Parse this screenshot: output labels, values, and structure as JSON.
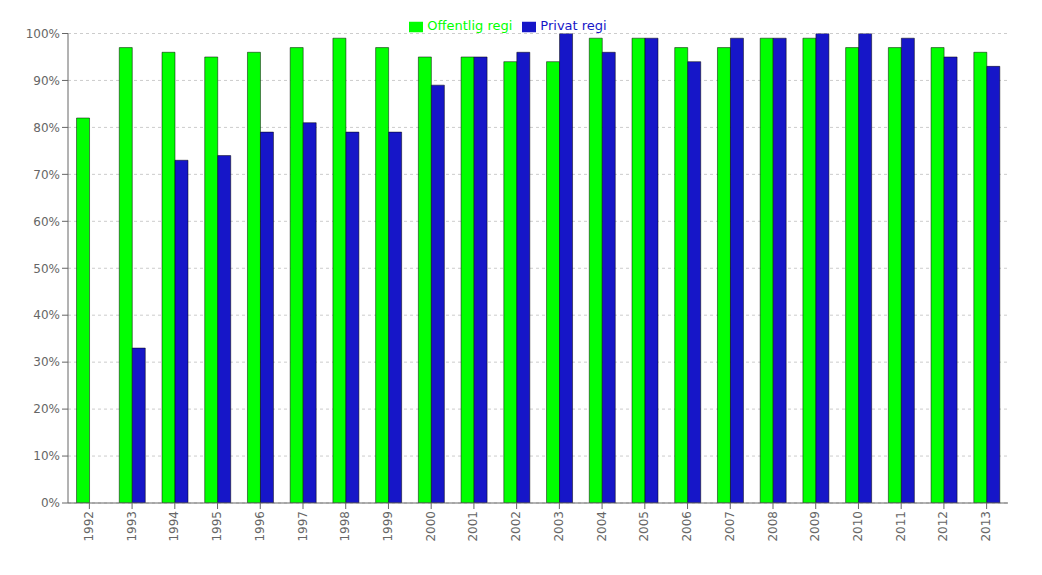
{
  "chart_data": {
    "type": "bar",
    "categories": [
      "1992",
      "1993",
      "1994",
      "1995",
      "1996",
      "1997",
      "1998",
      "1999",
      "2000",
      "2001",
      "2002",
      "2003",
      "2004",
      "2005",
      "2006",
      "2007",
      "2008",
      "2009",
      "2010",
      "2011",
      "2012",
      "2013"
    ],
    "series": [
      {
        "name": "Offentlig regi",
        "color": "#00FF00",
        "values": [
          82,
          97,
          96,
          95,
          96,
          97,
          99,
          97,
          95,
          95,
          94,
          94,
          99,
          99,
          97,
          97,
          99,
          99,
          97,
          97,
          97,
          96
        ]
      },
      {
        "name": "Privat regi",
        "color": "#1616C8",
        "values": [
          0,
          33,
          73,
          74,
          79,
          81,
          79,
          79,
          89,
          95,
          96,
          100,
          96,
          99,
          94,
          99,
          99,
          100,
          100,
          99,
          95,
          93
        ]
      }
    ],
    "ylim": [
      0,
      100
    ],
    "yticks": [
      {
        "value": 0,
        "label": "0%"
      },
      {
        "value": 10,
        "label": "10%"
      },
      {
        "value": 20,
        "label": "20%"
      },
      {
        "value": 30,
        "label": "30%"
      },
      {
        "value": 40,
        "label": "40%"
      },
      {
        "value": 50,
        "label": "50%"
      },
      {
        "value": 60,
        "label": "60%"
      },
      {
        "value": 70,
        "label": "70%"
      },
      {
        "value": 80,
        "label": "80%"
      },
      {
        "value": 90,
        "label": "90%"
      },
      {
        "value": 100,
        "label": "100%"
      }
    ],
    "grid": true,
    "legend": "top"
  }
}
